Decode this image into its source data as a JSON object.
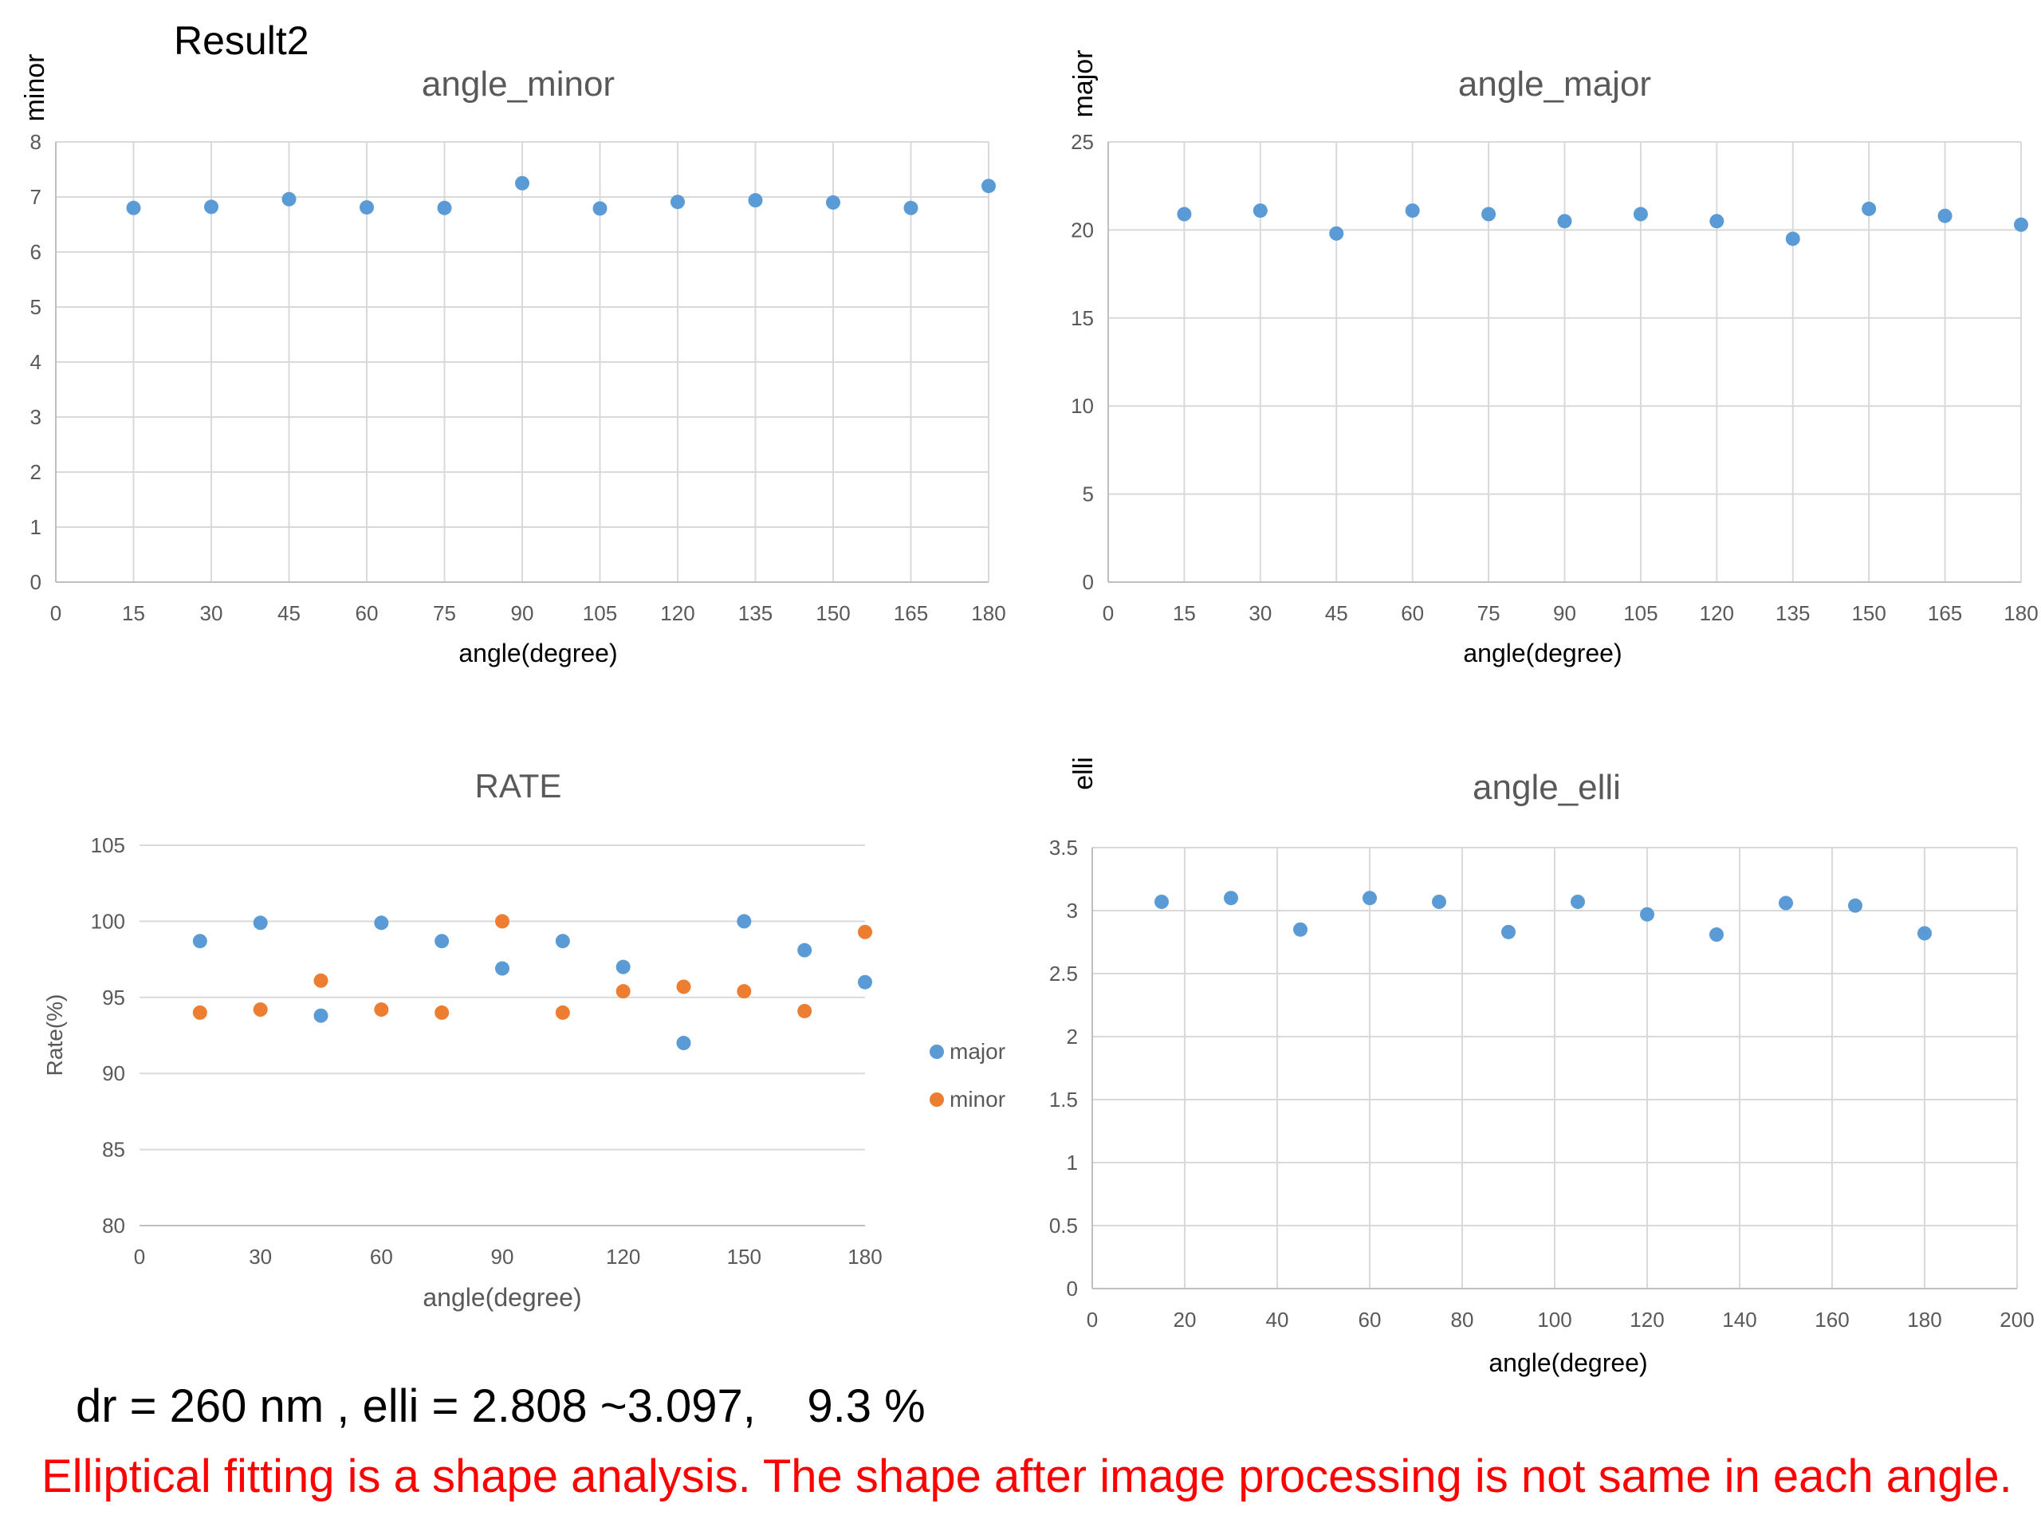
{
  "page": {
    "title": "Result2",
    "summary": "dr = 260 nm , elli = 2.808 ~3.097,    9.3 %",
    "note": "Elliptical fitting is a shape analysis. The shape after image processing is not same in each angle."
  },
  "colors": {
    "major": "#5b9bd5",
    "minor": "#ed7d31",
    "grid": "#d9d9d9",
    "text": "#595959"
  },
  "chart_data": [
    {
      "id": "minor",
      "type": "scatter",
      "title": "angle_minor",
      "xlabel": "angle(degree)",
      "ylabel": "minor",
      "xlim": [
        0,
        180
      ],
      "ylim": [
        0,
        8
      ],
      "xticks": [
        0,
        15,
        30,
        45,
        60,
        75,
        90,
        105,
        120,
        135,
        150,
        165,
        180
      ],
      "yticks": [
        0,
        1,
        2,
        3,
        4,
        5,
        6,
        7,
        8
      ],
      "grid": true,
      "legend": "none",
      "series": [
        {
          "name": "",
          "color": "#5b9bd5",
          "x": [
            15,
            30,
            45,
            60,
            75,
            90,
            105,
            120,
            135,
            150,
            165,
            180
          ],
          "y": [
            6.8,
            6.82,
            6.96,
            6.81,
            6.8,
            7.25,
            6.79,
            6.91,
            6.94,
            6.9,
            6.8,
            7.2
          ]
        }
      ]
    },
    {
      "id": "major",
      "type": "scatter",
      "title": "angle_major",
      "xlabel": "angle(degree)",
      "ylabel": "major",
      "xlim": [
        0,
        180
      ],
      "ylim": [
        0,
        25
      ],
      "xticks": [
        0,
        15,
        30,
        45,
        60,
        75,
        90,
        105,
        120,
        135,
        150,
        165,
        180
      ],
      "yticks": [
        0,
        5,
        10,
        15,
        20,
        25
      ],
      "grid": true,
      "legend": "none",
      "series": [
        {
          "name": "",
          "color": "#5b9bd5",
          "x": [
            15,
            30,
            45,
            60,
            75,
            90,
            105,
            120,
            135,
            150,
            165,
            180
          ],
          "y": [
            20.9,
            21.1,
            19.8,
            21.1,
            20.9,
            20.5,
            20.9,
            20.5,
            19.5,
            21.2,
            20.8,
            20.3
          ]
        }
      ]
    },
    {
      "id": "rate",
      "type": "scatter",
      "title": "RATE",
      "xlabel": "angle(degree)",
      "ylabel": "Rate(%)",
      "xlim": [
        0,
        180
      ],
      "ylim": [
        80,
        105
      ],
      "xticks": [
        0,
        30,
        60,
        90,
        120,
        150,
        180
      ],
      "yticks": [
        80,
        85,
        90,
        95,
        100,
        105
      ],
      "grid": true,
      "legend": "right",
      "series": [
        {
          "name": "major",
          "color": "#5b9bd5",
          "x": [
            15,
            30,
            45,
            60,
            75,
            90,
            105,
            120,
            135,
            150,
            165,
            180
          ],
          "y": [
            98.7,
            99.9,
            93.8,
            99.9,
            98.7,
            96.9,
            98.7,
            97.0,
            92.0,
            100.0,
            98.1,
            96.0
          ]
        },
        {
          "name": "minor",
          "color": "#ed7d31",
          "x": [
            15,
            30,
            45,
            60,
            75,
            90,
            105,
            120,
            135,
            150,
            165,
            180
          ],
          "y": [
            94.0,
            94.2,
            96.1,
            94.2,
            94.0,
            100.0,
            94.0,
            95.4,
            95.7,
            95.4,
            94.1,
            99.3
          ]
        }
      ]
    },
    {
      "id": "elli",
      "type": "scatter",
      "title": "angle_elli",
      "xlabel": "angle(degree)",
      "ylabel": "elli",
      "xlim": [
        0,
        200
      ],
      "ylim": [
        0,
        3.5
      ],
      "xticks": [
        0,
        20,
        40,
        60,
        80,
        100,
        120,
        140,
        160,
        180,
        200
      ],
      "yticks": [
        0,
        0.5,
        1,
        1.5,
        2,
        2.5,
        3,
        3.5
      ],
      "grid": true,
      "legend": "none",
      "series": [
        {
          "name": "",
          "color": "#5b9bd5",
          "x": [
            15,
            30,
            45,
            60,
            75,
            90,
            105,
            120,
            135,
            150,
            165,
            180
          ],
          "y": [
            3.07,
            3.1,
            2.85,
            3.1,
            3.07,
            2.83,
            3.07,
            2.97,
            2.81,
            3.06,
            3.04,
            2.82
          ]
        }
      ]
    }
  ]
}
